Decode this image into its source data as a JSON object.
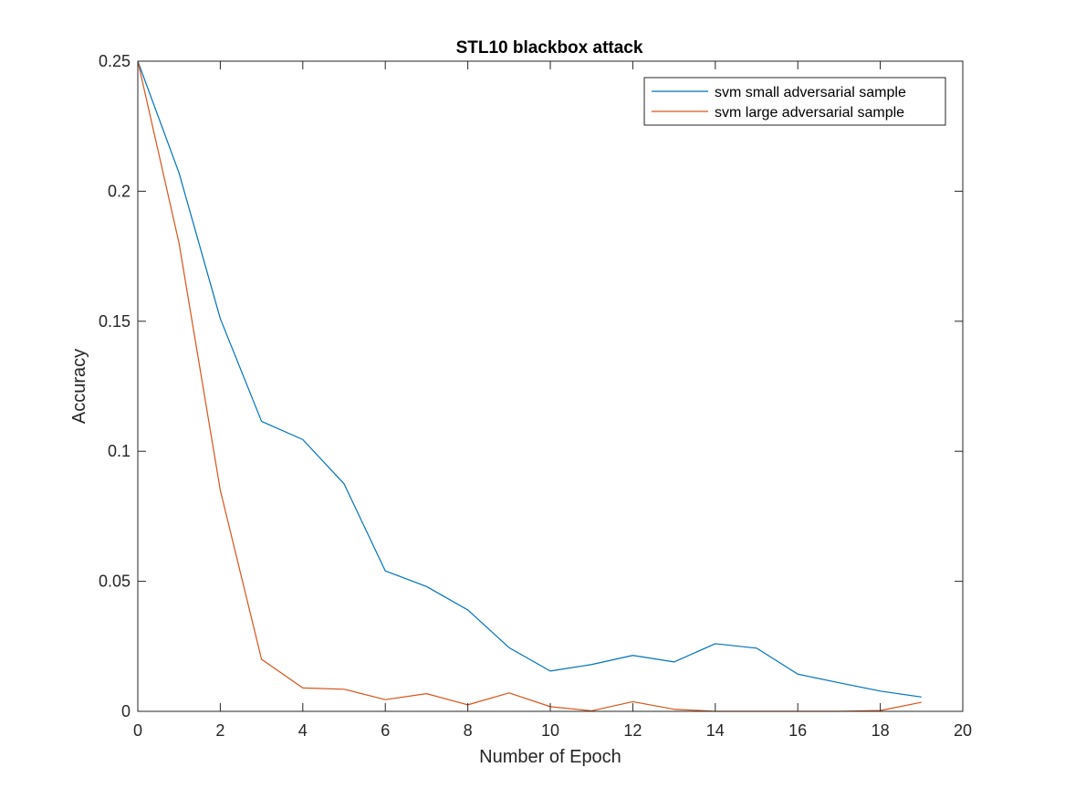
{
  "chart_data": {
    "type": "line",
    "title": "STL10 blackbox attack",
    "xlabel": "Number of Epoch",
    "ylabel": "Accuracy",
    "xlim": [
      0,
      20
    ],
    "ylim": [
      0,
      0.25
    ],
    "xticks": [
      0,
      2,
      4,
      6,
      8,
      10,
      12,
      14,
      16,
      18,
      20
    ],
    "yticks": [
      0,
      0.05,
      0.1,
      0.15,
      0.2,
      0.25
    ],
    "xtick_labels": [
      "0",
      "2",
      "4",
      "6",
      "8",
      "10",
      "12",
      "14",
      "16",
      "18",
      "20"
    ],
    "ytick_labels": [
      "0",
      "0.05",
      "0.1",
      "0.15",
      "0.2",
      "0.25"
    ],
    "grid": false,
    "legend_position": "top-right",
    "x": [
      0,
      1,
      2,
      3,
      4,
      5,
      6,
      7,
      8,
      9,
      10,
      11,
      12,
      13,
      14,
      15,
      16,
      17,
      18,
      19
    ],
    "series": [
      {
        "name": "svm small adversarial sample",
        "color": "#0072BD",
        "values": [
          0.25,
          0.207,
          0.151,
          0.1115,
          0.1045,
          0.0875,
          0.054,
          0.048,
          0.039,
          0.0245,
          0.0155,
          0.018,
          0.0215,
          0.019,
          0.026,
          0.0243,
          0.0143,
          0.011,
          0.0078,
          0.0055
        ]
      },
      {
        "name": "svm large adversarial sample",
        "color": "#D95319",
        "values": [
          0.25,
          0.18,
          0.085,
          0.02,
          0.009,
          0.0085,
          0.0045,
          0.0068,
          0.0025,
          0.0071,
          0.0018,
          0.0002,
          0.0037,
          0.0008,
          0.0,
          0.0,
          0.0,
          0.0,
          0.0003,
          0.0035
        ]
      }
    ]
  }
}
